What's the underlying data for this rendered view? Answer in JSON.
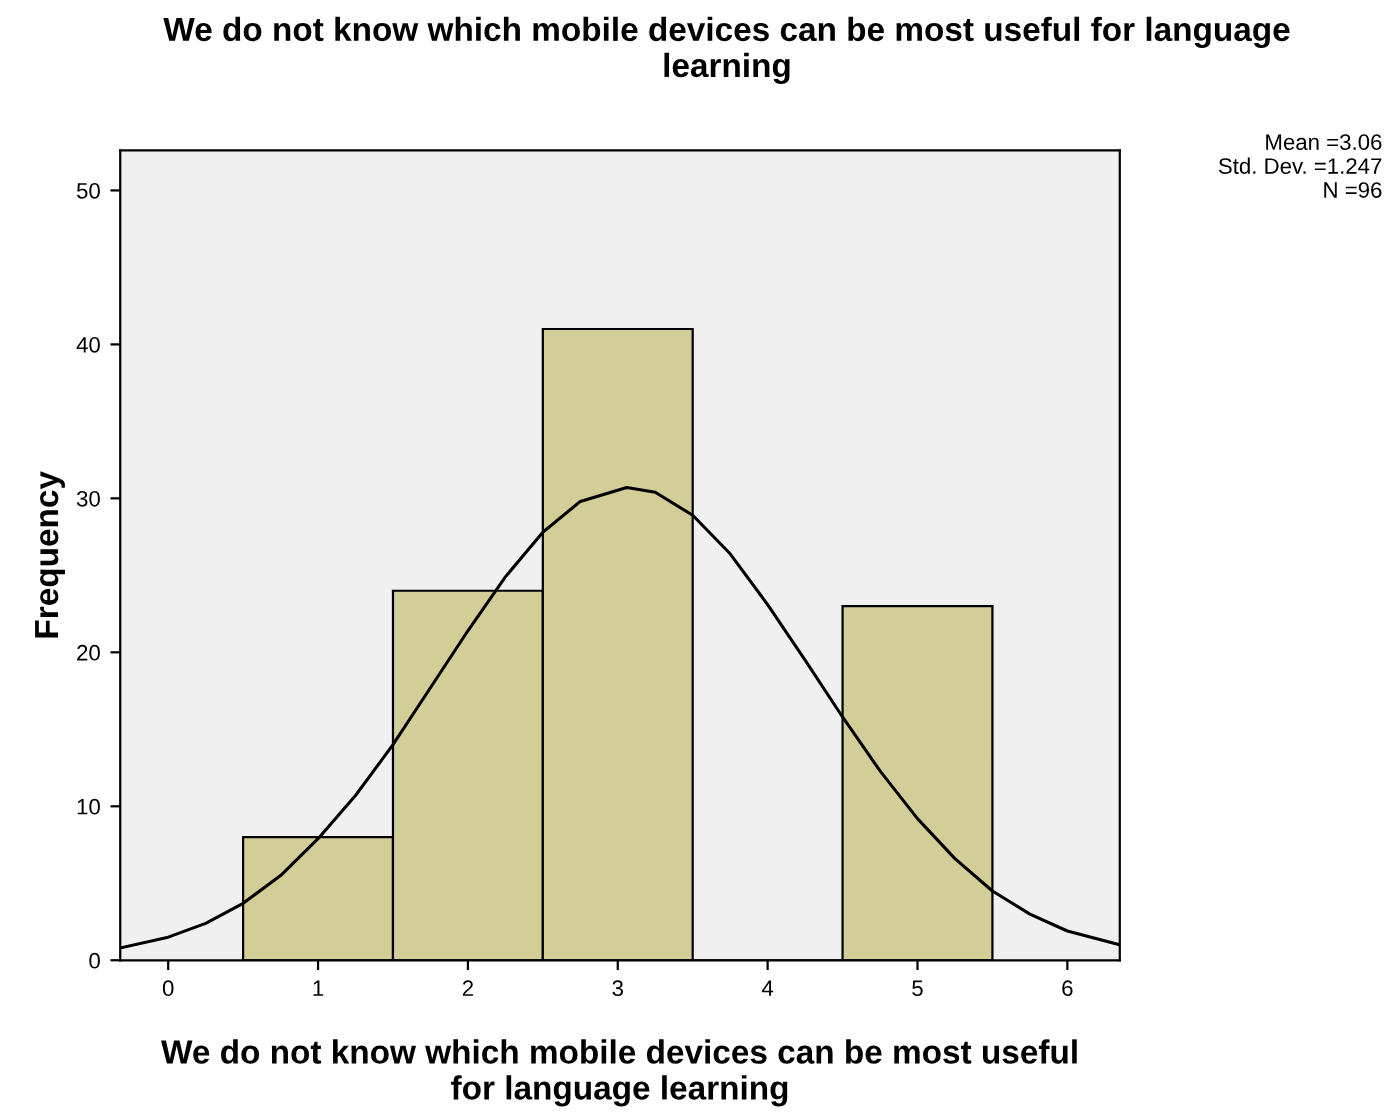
{
  "chart_data": {
    "type": "histogram",
    "title": "We do not know which mobile devices can be most useful for language learning",
    "xlabel": "We do not know which mobile devices can be most useful for language learning",
    "ylabel": "Frequency",
    "bins": [
      0.5,
      1.5,
      2.5,
      3.5,
      4.5,
      5.5
    ],
    "values": [
      8,
      24,
      41,
      0,
      23
    ],
    "color": "#d3ce97",
    "series": [
      {
        "type": "line",
        "color": "#000000",
        "x": [
          -0.32,
          0,
          0.25,
          0.5,
          0.75,
          1,
          1.25,
          1.5,
          1.75,
          2,
          2.25,
          2.5,
          2.75,
          3.06,
          3.25,
          3.5,
          3.75,
          4,
          4.25,
          4.5,
          4.75,
          5,
          5.25,
          5.5,
          5.75,
          6,
          6.35
        ],
        "values": [
          0.8,
          1.5,
          2.4,
          3.7,
          5.5,
          7.9,
          10.7,
          14,
          17.7,
          21.4,
          24.9,
          27.8,
          29.8,
          30.7,
          30.4,
          28.9,
          26.4,
          23.1,
          19.5,
          15.8,
          12.3,
          9.2,
          6.6,
          4.5,
          3,
          1.9,
          1
        ]
      }
    ],
    "xlim": [
      -0.32,
      6.35
    ],
    "ylim": [
      0,
      52.6
    ],
    "xticks": [
      0,
      1,
      2,
      3,
      4,
      5,
      6
    ],
    "yticks": [
      0,
      10,
      20,
      30,
      40,
      50
    ],
    "annotations": [
      "Mean =3.06\nStd. Dev. =1.247\nN =96"
    ],
    "grid": false,
    "legend": false
  }
}
